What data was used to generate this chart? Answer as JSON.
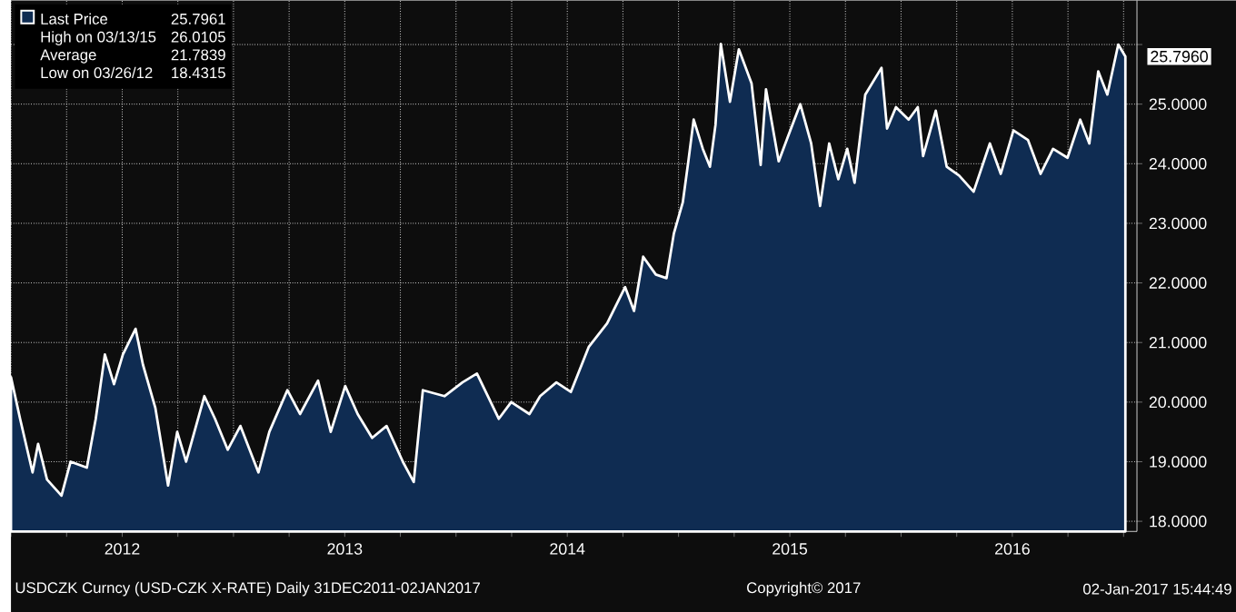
{
  "chart_data": {
    "type": "area",
    "x": [
      2012.0,
      2012.041,
      2012.097,
      2012.122,
      2012.162,
      2012.227,
      2012.268,
      2012.341,
      2012.381,
      2012.422,
      2012.463,
      2012.503,
      2012.56,
      2012.593,
      2012.649,
      2012.706,
      2012.747,
      2012.787,
      2012.869,
      2012.917,
      2012.974,
      2013.031,
      2013.112,
      2013.161,
      2013.242,
      2013.299,
      2013.38,
      2013.437,
      2013.502,
      2013.558,
      2013.623,
      2013.688,
      2013.761,
      2013.81,
      2013.851,
      2013.948,
      2014.029,
      2014.094,
      2014.192,
      2014.248,
      2014.33,
      2014.378,
      2014.451,
      2014.516,
      2014.597,
      2014.679,
      2014.76,
      2014.8,
      2014.841,
      2014.898,
      2014.946,
      2014.979,
      2015.019,
      2015.044,
      2015.068,
      2015.109,
      2015.141,
      2015.166,
      2015.19,
      2015.231,
      2015.271,
      2015.328,
      2015.369,
      2015.393,
      2015.45,
      2015.49,
      2015.547,
      2015.596,
      2015.636,
      2015.677,
      2015.718,
      2015.758,
      2015.791,
      2015.839,
      2015.912,
      2015.937,
      2015.977,
      2016.034,
      2016.075,
      2016.099,
      2016.156,
      2016.205,
      2016.261,
      2016.326,
      2016.399,
      2016.448,
      2016.505,
      2016.57,
      2016.627,
      2016.683,
      2016.748,
      2016.805,
      2016.846,
      2016.886,
      2016.927,
      2016.976,
      2017.008
    ],
    "series": [
      {
        "name": "Last Price",
        "color": "#0f2c52",
        "values": [
          20.42,
          19.72,
          18.82,
          19.3,
          18.7,
          18.43,
          19.0,
          18.9,
          19.72,
          20.8,
          20.3,
          20.8,
          21.23,
          20.63,
          19.9,
          18.6,
          19.5,
          19.0,
          20.1,
          19.72,
          19.2,
          19.6,
          18.82,
          19.5,
          20.2,
          19.8,
          20.36,
          19.5,
          20.27,
          19.8,
          19.4,
          19.6,
          19.0,
          18.66,
          20.2,
          20.1,
          20.33,
          20.48,
          19.72,
          20.0,
          19.8,
          20.1,
          20.33,
          20.17,
          20.93,
          21.32,
          21.93,
          21.53,
          22.44,
          22.14,
          22.08,
          22.83,
          23.35,
          24.04,
          24.74,
          24.25,
          23.95,
          24.65,
          26.01,
          25.04,
          25.92,
          25.35,
          23.98,
          25.25,
          24.04,
          24.44,
          25.0,
          24.34,
          23.29,
          24.34,
          23.74,
          24.25,
          23.68,
          25.16,
          25.61,
          24.59,
          24.95,
          24.74,
          24.95,
          24.13,
          24.89,
          23.95,
          23.8,
          23.53,
          24.34,
          23.83,
          24.56,
          24.4,
          23.83,
          24.25,
          24.1,
          24.74,
          24.34,
          25.55,
          25.16,
          26.0,
          25.8
        ]
      }
    ],
    "xlim": [
      2012.0,
      2017.06
    ],
    "xticks": [
      {
        "value": 2012.0,
        "label": null
      },
      {
        "value": 2012.25,
        "label": null
      },
      {
        "value": 2012.5,
        "label": "2012"
      },
      {
        "value": 2012.75,
        "label": null
      },
      {
        "value": 2013.0,
        "label": null
      },
      {
        "value": 2013.25,
        "label": null
      },
      {
        "value": 2013.5,
        "label": "2013"
      },
      {
        "value": 2013.75,
        "label": null
      },
      {
        "value": 2014.0,
        "label": null
      },
      {
        "value": 2014.25,
        "label": null
      },
      {
        "value": 2014.5,
        "label": "2014"
      },
      {
        "value": 2014.75,
        "label": null
      },
      {
        "value": 2015.0,
        "label": null
      },
      {
        "value": 2015.25,
        "label": null
      },
      {
        "value": 2015.5,
        "label": "2015"
      },
      {
        "value": 2015.75,
        "label": null
      },
      {
        "value": 2016.0,
        "label": null
      },
      {
        "value": 2016.25,
        "label": null
      },
      {
        "value": 2016.5,
        "label": "2016"
      },
      {
        "value": 2016.75,
        "label": null
      },
      {
        "value": 2017.0,
        "label": null
      }
    ],
    "ylim": [
      17.83,
      26.74
    ],
    "yticks": [
      {
        "value": 18,
        "label": "18.0000"
      },
      {
        "value": 19,
        "label": "19.0000"
      },
      {
        "value": 20,
        "label": "20.0000"
      },
      {
        "value": 21,
        "label": "21.0000"
      },
      {
        "value": 22,
        "label": "22.0000"
      },
      {
        "value": 23,
        "label": "23.0000"
      },
      {
        "value": 24,
        "label": "24.0000"
      },
      {
        "value": 25,
        "label": "25.0000"
      },
      {
        "value": 26,
        "label": null
      }
    ],
    "grid": true,
    "legend": "top left",
    "annotations": [
      "25.7961",
      "High on 03/13/15",
      "26.0105",
      "Average",
      "21.7839",
      "Low on 03/26/12",
      "18.4315",
      {
        "text": "25.7960",
        "x": 2017.008,
        "y": 25.8
      },
      "USDCZK Curncy (USD-CZK X-RATE)  Daily 31DEC2011-02JAN2017",
      "Copyright© 2017",
      "02-Jan-2017 15:44:49"
    ]
  }
}
